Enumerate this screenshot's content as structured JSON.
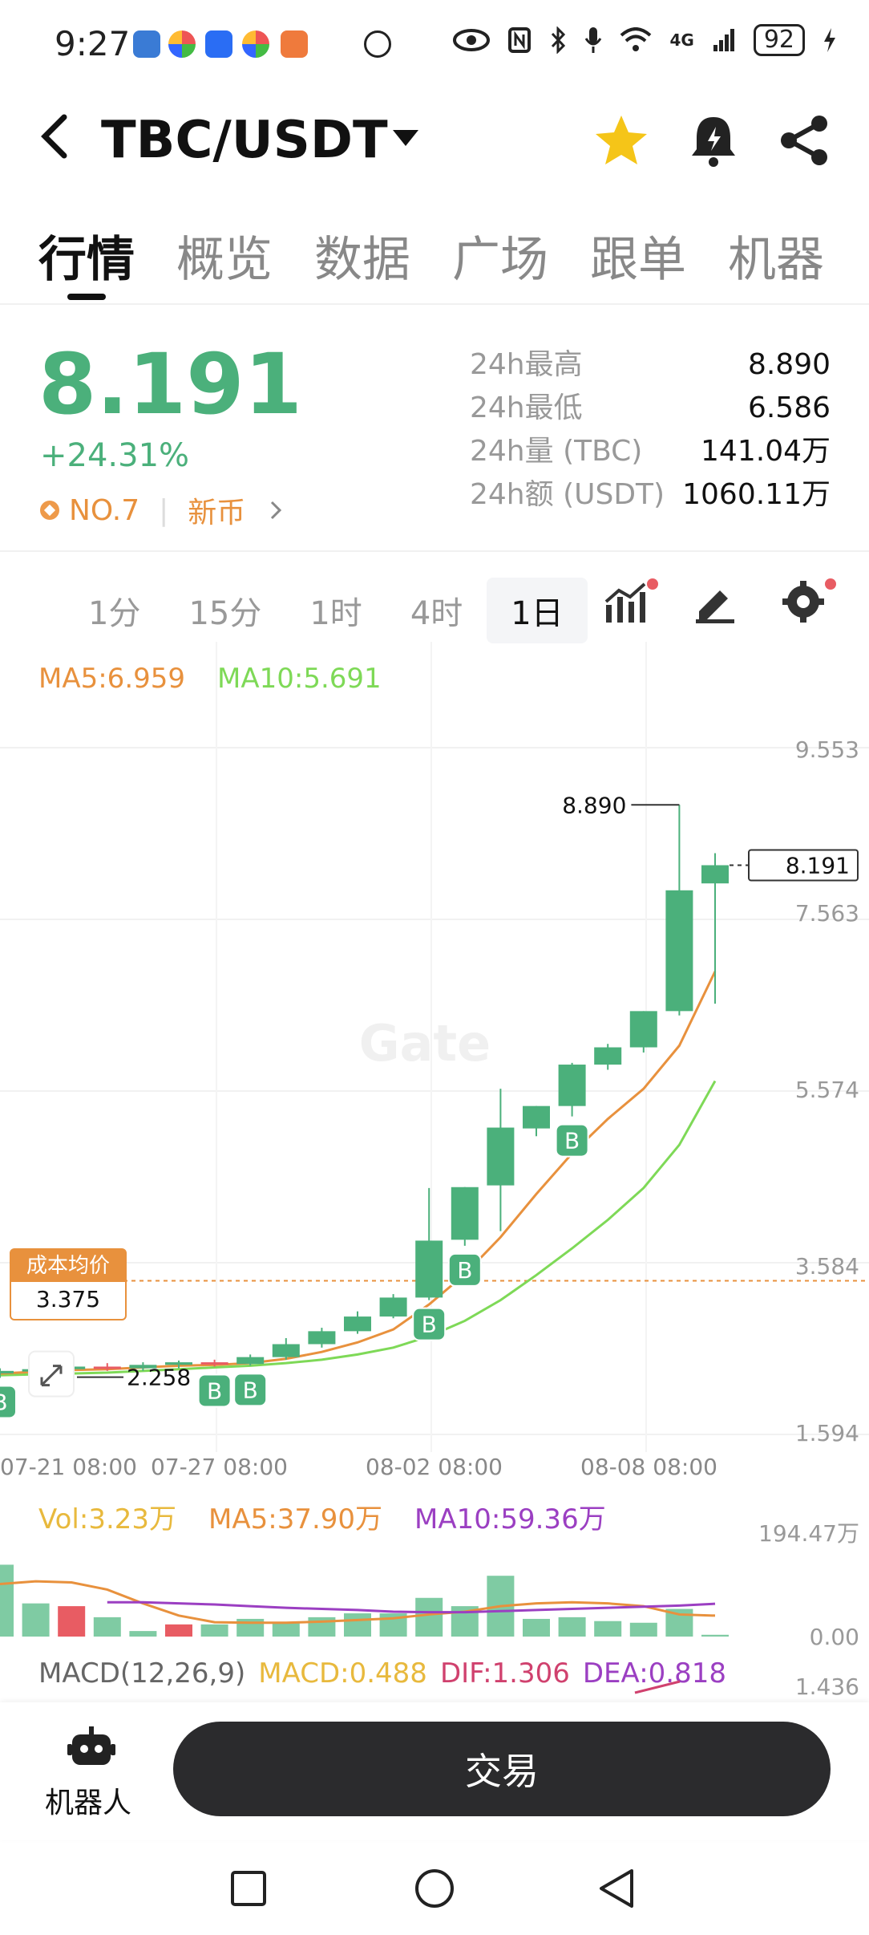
{
  "status_bar": {
    "time": "9:27",
    "battery": "92",
    "network": "4G"
  },
  "header": {
    "back_icon": "chevron-left-icon",
    "pair": "TBC/USDT",
    "icons": [
      "star-icon",
      "bell-alert-icon",
      "share-icon"
    ],
    "star_color": "#f5c518"
  },
  "tabs": [
    {
      "label": "行情",
      "active": true
    },
    {
      "label": "概览"
    },
    {
      "label": "数据"
    },
    {
      "label": "广场"
    },
    {
      "label": "跟单"
    },
    {
      "label": "机器"
    }
  ],
  "ticker": {
    "price": "8.191",
    "change": "+24.31%",
    "rank": "NO.7",
    "tag": "新币",
    "up_color": "#4bb07b",
    "down_color": "#e85c63",
    "stats": [
      {
        "label": "24h最高",
        "value": "8.890"
      },
      {
        "label": "24h最低",
        "value": "6.586"
      },
      {
        "label": "24h量 (TBC)",
        "value": "141.04万"
      },
      {
        "label": "24h额 (USDT)",
        "value": "1060.11万"
      }
    ]
  },
  "timeframes": [
    {
      "label": "1分"
    },
    {
      "label": "15分"
    },
    {
      "label": "1时"
    },
    {
      "label": "4时"
    },
    {
      "label": "1日",
      "selected": true
    }
  ],
  "toolbar_icons": [
    "indicator-icon",
    "draw-icon",
    "settings-icon"
  ],
  "ma_legend": {
    "ma5": "MA5:6.959",
    "ma10": "MA10:5.691",
    "ma5_color": "#e8913d",
    "ma10_color": "#7ed957"
  },
  "chart_data": {
    "type": "candlestick",
    "y_ticks": [
      "9.553",
      "7.563",
      "5.574",
      "3.584",
      "1.594"
    ],
    "ylim": [
      1.594,
      9.553
    ],
    "x_ticks": [
      "07-21 08:00",
      "07-27 08:00",
      "08-02 08:00",
      "08-08 08:00"
    ],
    "last_price_label": "8.191",
    "high_label": "8.890",
    "low_label": "2.258",
    "cost_label": "成本均价",
    "cost_value": "3.375",
    "buy_marker": "B",
    "candles": [
      {
        "o": 2.3,
        "h": 2.36,
        "l": 2.25,
        "c": 2.33
      },
      {
        "o": 2.33,
        "h": 2.38,
        "l": 2.27,
        "c": 2.35
      },
      {
        "o": 2.35,
        "h": 2.4,
        "l": 2.3,
        "c": 2.38
      },
      {
        "o": 2.38,
        "h": 2.42,
        "l": 2.33,
        "c": 2.36
      },
      {
        "o": 2.36,
        "h": 2.43,
        "l": 2.33,
        "c": 2.4
      },
      {
        "o": 2.4,
        "h": 2.45,
        "l": 2.36,
        "c": 2.43
      },
      {
        "o": 2.43,
        "h": 2.46,
        "l": 2.38,
        "c": 2.41
      },
      {
        "o": 2.41,
        "h": 2.52,
        "l": 2.39,
        "c": 2.49
      },
      {
        "o": 2.49,
        "h": 2.71,
        "l": 2.46,
        "c": 2.64
      },
      {
        "o": 2.64,
        "h": 2.83,
        "l": 2.6,
        "c": 2.79
      },
      {
        "o": 2.79,
        "h": 3.02,
        "l": 2.76,
        "c": 2.96
      },
      {
        "o": 2.96,
        "h": 3.22,
        "l": 2.94,
        "c": 3.18
      },
      {
        "o": 3.18,
        "h": 4.45,
        "l": 3.15,
        "c": 3.84
      },
      {
        "o": 3.85,
        "h": 4.46,
        "l": 3.78,
        "c": 4.46
      },
      {
        "o": 4.48,
        "h": 5.6,
        "l": 3.95,
        "c": 5.15
      },
      {
        "o": 5.14,
        "h": 5.4,
        "l": 5.05,
        "c": 5.4
      },
      {
        "o": 5.4,
        "h": 5.9,
        "l": 5.28,
        "c": 5.88
      },
      {
        "o": 5.88,
        "h": 6.12,
        "l": 5.82,
        "c": 6.08
      },
      {
        "o": 6.08,
        "h": 6.5,
        "l": 6.02,
        "c": 6.5
      },
      {
        "o": 6.5,
        "h": 8.89,
        "l": 6.45,
        "c": 7.9
      },
      {
        "o": 7.98,
        "h": 8.33,
        "l": 6.586,
        "c": 8.191
      }
    ],
    "ma5": [
      2.3,
      2.32,
      2.34,
      2.35,
      2.37,
      2.39,
      2.4,
      2.42,
      2.47,
      2.55,
      2.66,
      2.81,
      3.1,
      3.45,
      3.88,
      4.38,
      4.85,
      5.25,
      5.6,
      6.1,
      6.96
    ],
    "ma10": [
      2.28,
      2.29,
      2.3,
      2.31,
      2.33,
      2.35,
      2.37,
      2.39,
      2.42,
      2.46,
      2.52,
      2.6,
      2.73,
      2.91,
      3.15,
      3.44,
      3.75,
      4.08,
      4.45,
      4.95,
      5.69
    ],
    "buy_candles": [
      0,
      6,
      7,
      12,
      13,
      16
    ]
  },
  "volume": {
    "legend": {
      "vol": "Vol:3.23万",
      "ma5": "MA5:37.90万",
      "ma10": "MA10:59.36万",
      "vol_color": "#e8b93d",
      "ma10_color": "#9b3fc2"
    },
    "y_max_label": "194.47万",
    "y_min_label": "0.00",
    "ylim": [
      0,
      194.47
    ],
    "bars": [
      {
        "v": 130,
        "up": true
      },
      {
        "v": 60,
        "up": true
      },
      {
        "v": 55,
        "up": false
      },
      {
        "v": 35,
        "up": true
      },
      {
        "v": 10,
        "up": true
      },
      {
        "v": 22,
        "up": false
      },
      {
        "v": 22,
        "up": true
      },
      {
        "v": 32,
        "up": true
      },
      {
        "v": 25,
        "up": true
      },
      {
        "v": 35,
        "up": true
      },
      {
        "v": 42,
        "up": true
      },
      {
        "v": 42,
        "up": true
      },
      {
        "v": 70,
        "up": true
      },
      {
        "v": 55,
        "up": true
      },
      {
        "v": 110,
        "up": true
      },
      {
        "v": 32,
        "up": true
      },
      {
        "v": 35,
        "up": true
      },
      {
        "v": 28,
        "up": true
      },
      {
        "v": 25,
        "up": true
      },
      {
        "v": 50,
        "up": true
      },
      {
        "v": 3.23,
        "up": true
      }
    ],
    "ma5": [
      95,
      100,
      98,
      85,
      60,
      38,
      26,
      25,
      25,
      27,
      30,
      33,
      40,
      45,
      55,
      60,
      62,
      60,
      55,
      40,
      37.9
    ],
    "ma10": [
      null,
      null,
      null,
      62,
      62,
      60,
      58,
      55,
      52,
      50,
      48,
      45,
      44,
      44,
      46,
      48,
      50,
      52,
      54,
      56,
      59.36
    ]
  },
  "macd": {
    "title": "MACD(12,26,9)",
    "macd": "MACD:0.488",
    "dif": "DIF:1.306",
    "dea": "DEA:0.818",
    "y_label": "1.436",
    "macd_color": "#e8b93d",
    "dif_color": "#d0416e",
    "dea_color": "#9b3fc2"
  },
  "bottom": {
    "robot_label": "机器人",
    "trade_label": "交易"
  }
}
